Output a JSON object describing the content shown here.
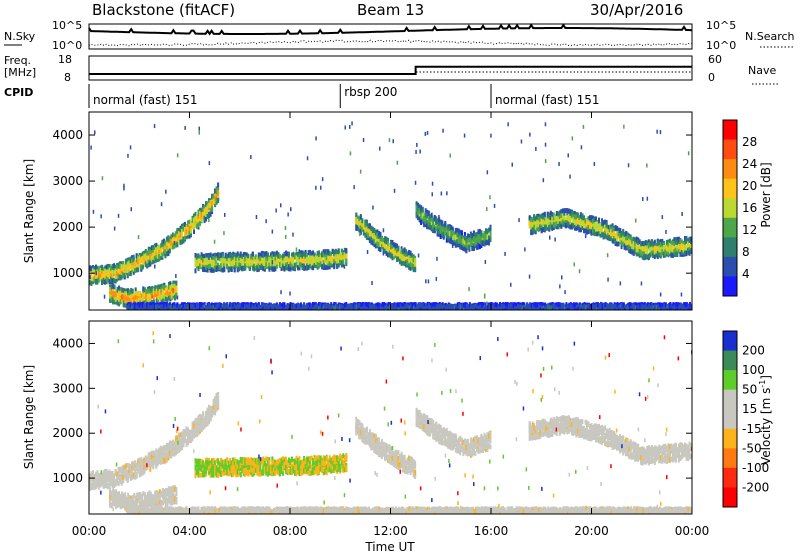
{
  "header": {
    "station": "Blackstone (fitACF)",
    "beam": "Beam 13",
    "date": "30/Apr/2016"
  },
  "summary_panels": {
    "nsky_label": "N.Sky",
    "nsky_ticks": [
      "10^5",
      "10^0"
    ],
    "nsearch_label": "N.Search",
    "nsearch_ticks": [
      "10^5",
      "10^0"
    ],
    "freq_label_1": "Freq.",
    "freq_label_2": "[MHz]",
    "freq_ticks": [
      "18",
      "8"
    ],
    "nave_label": "Nave",
    "nave_ticks": [
      "60",
      "0"
    ],
    "cpid_label": "CPID",
    "cpid_segments": [
      {
        "label": "normal (fast) 151",
        "start_hour": 0,
        "end_hour": 10
      },
      {
        "label": "rbsp 200",
        "start_hour": 10,
        "end_hour": 16
      },
      {
        "label": "normal (fast) 151",
        "start_hour": 16,
        "end_hour": 24
      }
    ]
  },
  "x_axis": {
    "label": "Time UT",
    "ticks": [
      "00:00",
      "04:00",
      "08:00",
      "12:00",
      "16:00",
      "20:00",
      "00:00"
    ]
  },
  "power_panel": {
    "ylabel": "Slant Range [km]",
    "yticks": [
      "1000",
      "2000",
      "3000",
      "4000"
    ],
    "colorbar_label": "Power [dB]",
    "colorbar_ticks": [
      "4",
      "8",
      "12",
      "16",
      "20",
      "24",
      "28"
    ],
    "colors": [
      "#1a1aff",
      "#2a4fb0",
      "#2f7f6f",
      "#4ea64a",
      "#bcd832",
      "#ffc31a",
      "#ff8c10",
      "#ff4d10",
      "#ff0000"
    ]
  },
  "velocity_panel": {
    "ylabel": "Slant Range [km]",
    "yticks": [
      "1000",
      "2000",
      "3000",
      "4000"
    ],
    "colorbar_label": "Velocity [m s",
    "colorbar_label_sup": "-1",
    "colorbar_label_end": "]",
    "colorbar_ticks": [
      "200",
      "100",
      "50",
      "15",
      "-15",
      "-50",
      "-100",
      "-200"
    ],
    "colors": [
      "#1a2fd0",
      "#3c8a5a",
      "#5ccd2a",
      "#c8c8c0",
      "#c8c8c0",
      "#ffb21a",
      "#ff7a10",
      "#ff2a10",
      "#ff0000"
    ]
  },
  "chart_data": {
    "type": "heatmap",
    "title": "Blackstone (fitACF)",
    "subtitle": "Beam 13",
    "xlabel": "Time UT",
    "ylabel": "Slant Range [km]",
    "xlim": [
      0,
      24
    ],
    "ylim": [
      200,
      4500
    ],
    "frequency_MHz": {
      "before_13UT": 10.5,
      "after_13UT": 13.5
    },
    "echo_bands": [
      {
        "name": "band-a",
        "times": [
          0,
          1,
          2,
          3,
          4,
          4.8,
          5.1
        ],
        "ranges": [
          1000,
          1050,
          1300,
          1600,
          2050,
          2500,
          2800
        ],
        "power_dB": 24,
        "velocity_ms": 0
      },
      {
        "name": "band-b",
        "times": [
          0.8,
          1.5,
          2.5,
          3.5
        ],
        "ranges": [
          620,
          500,
          560,
          700
        ],
        "power_dB": 26,
        "velocity_ms": 0
      },
      {
        "name": "band-c",
        "times": [
          4.2,
          6,
          8,
          9.5,
          10.2
        ],
        "ranges": [
          1280,
          1300,
          1320,
          1350,
          1400
        ],
        "power_dB": 20,
        "velocity_ms": 30
      },
      {
        "name": "band-d",
        "times": [
          10.6,
          11.5,
          12.3,
          13
        ],
        "ranges": [
          2200,
          1750,
          1450,
          1250
        ],
        "power_dB": 20,
        "velocity_ms": 0
      },
      {
        "name": "band-e",
        "times": [
          13,
          14,
          15,
          16
        ],
        "ranges": [
          2400,
          2000,
          1700,
          1900
        ],
        "power_dB": 16,
        "velocity_ms": 0
      },
      {
        "name": "band-f",
        "times": [
          17.5,
          19,
          20.5,
          22,
          24
        ],
        "ranges": [
          2100,
          2250,
          2000,
          1550,
          1650
        ],
        "power_dB": 20,
        "velocity_ms": 0
      },
      {
        "name": "ground-scatter-near",
        "times": [
          1.5,
          5,
          10,
          15,
          20,
          24
        ],
        "ranges": [
          300,
          300,
          300,
          300,
          300,
          300
        ],
        "power_dB": 8,
        "velocity_ms": 0
      }
    ]
  }
}
